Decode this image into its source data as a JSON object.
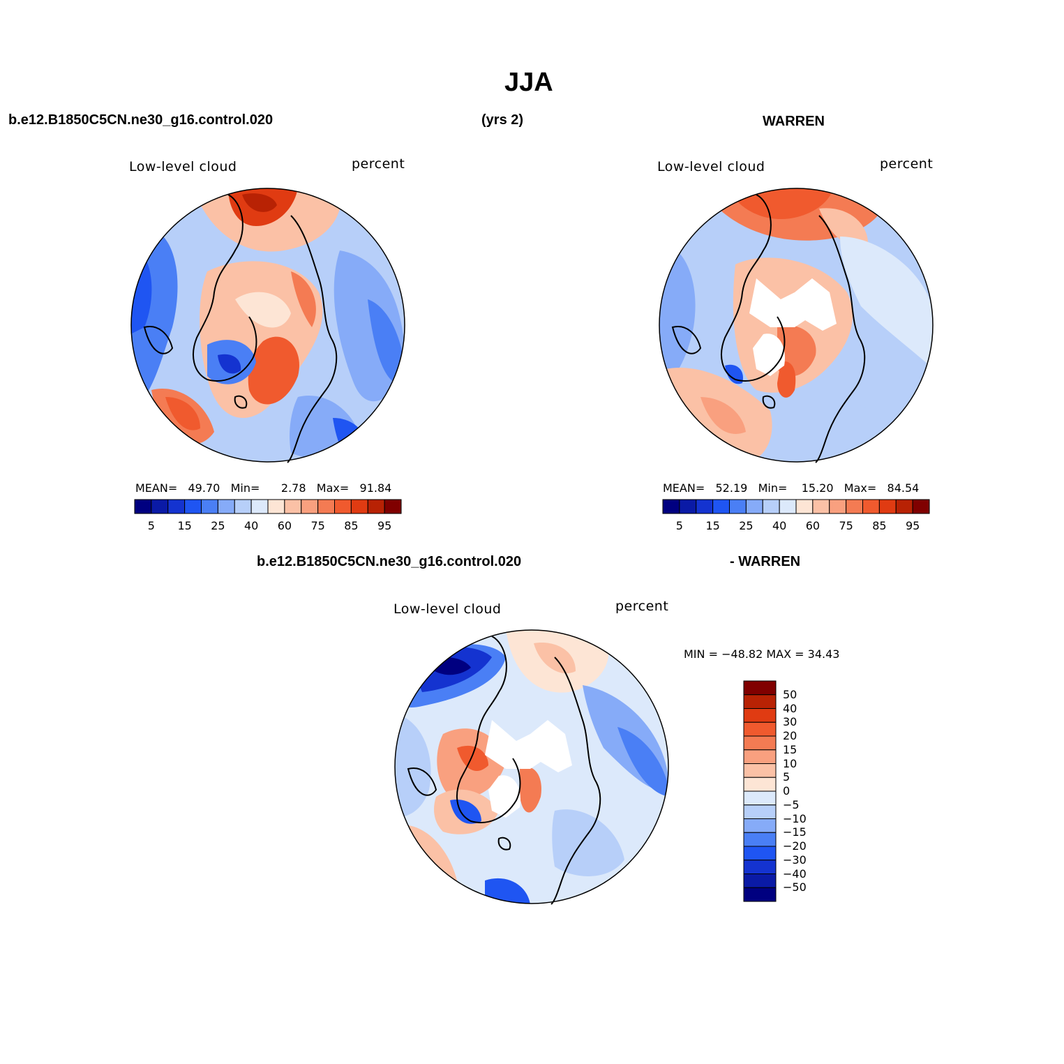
{
  "title": "JJA",
  "top_left_header": "b.e12.B1850C5CN.ne30_g16.control.020",
  "top_center_header": "(yrs 2)",
  "top_right_header": "WARREN",
  "bottom_left_header": "b.e12.B1850C5CN.ne30_g16.control.020",
  "bottom_right_header": "- WARREN",
  "panels": [
    {
      "id": "model",
      "variable": "Low-level cloud",
      "units": "percent",
      "stats": {
        "mean_label": "MEAN=",
        "mean": "49.70",
        "min_label": "Min=",
        "min": "2.78",
        "max_label": "Max=",
        "max": "91.84"
      }
    },
    {
      "id": "obs",
      "variable": "Low-level cloud",
      "units": "percent",
      "stats": {
        "mean_label": "MEAN=",
        "mean": "52.19",
        "min_label": "Min=",
        "min": "15.20",
        "max_label": "Max=",
        "max": "84.54"
      }
    },
    {
      "id": "diff",
      "variable": "Low-level cloud",
      "units": "percent",
      "minmax_text": "MIN = −48.82  MAX =   34.43"
    }
  ],
  "abs_colorbar": {
    "colors": [
      "#000080",
      "#0a1aa6",
      "#1433d0",
      "#1f55f2",
      "#4a7ff5",
      "#86abf8",
      "#b7cff9",
      "#dce9fb",
      "#fde5d5",
      "#fbc1a6",
      "#f9a07f",
      "#f47b53",
      "#f05a2e",
      "#e03b12",
      "#b82204",
      "#800000"
    ],
    "tick_labels": [
      "5",
      "15",
      "25",
      "40",
      "60",
      "75",
      "85",
      "95"
    ]
  },
  "diff_colorbar": {
    "colors_top_to_bottom": [
      "#800000",
      "#b82204",
      "#e03b12",
      "#f05a2e",
      "#f47b53",
      "#f9a07f",
      "#fbc1a6",
      "#fde5d5",
      "#dce9fb",
      "#b7cff9",
      "#86abf8",
      "#4a7ff5",
      "#1f55f2",
      "#1433d0",
      "#0a1aa6",
      "#000080"
    ],
    "tick_labels": [
      "50",
      "40",
      "30",
      "20",
      "15",
      "10",
      "5",
      "0",
      "−5",
      "−10",
      "−15",
      "−20",
      "−30",
      "−40",
      "−50"
    ]
  }
}
